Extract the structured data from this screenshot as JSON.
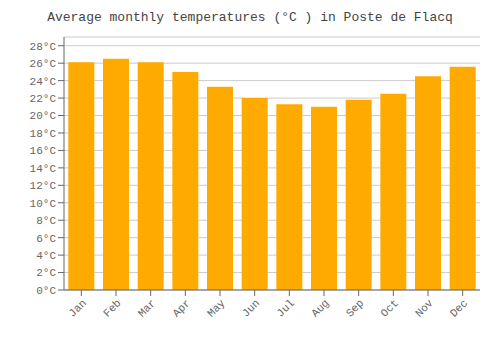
{
  "chart_data": {
    "type": "bar",
    "title": "Average monthly temperatures (°C ) in Poste de Flacq",
    "categories": [
      "Jan",
      "Feb",
      "Mar",
      "Apr",
      "May",
      "Jun",
      "Jul",
      "Aug",
      "Sep",
      "Oct",
      "Nov",
      "Dec"
    ],
    "values": [
      26.1,
      26.5,
      26.1,
      25.0,
      23.3,
      22.0,
      21.3,
      21.0,
      21.8,
      22.5,
      24.5,
      25.6
    ],
    "color": "#FFAA00",
    "ylim": [
      0,
      29
    ],
    "yticks": [
      {
        "value": 0,
        "label": "0°C"
      },
      {
        "value": 2,
        "label": "2°C"
      },
      {
        "value": 4,
        "label": "4°C"
      },
      {
        "value": 6,
        "label": "6°C"
      },
      {
        "value": 8,
        "label": "8°C"
      },
      {
        "value": 10,
        "label": "10°C"
      },
      {
        "value": 12,
        "label": "12°C"
      },
      {
        "value": 14,
        "label": "14°C"
      },
      {
        "value": 16,
        "label": "16°C"
      },
      {
        "value": 18,
        "label": "18°C"
      },
      {
        "value": 20,
        "label": "20°C"
      },
      {
        "value": 22,
        "label": "22°C"
      },
      {
        "value": 24,
        "label": "24°C"
      },
      {
        "value": 26,
        "label": "26°C"
      },
      {
        "value": 28,
        "label": "28°C"
      }
    ],
    "grid": true
  }
}
